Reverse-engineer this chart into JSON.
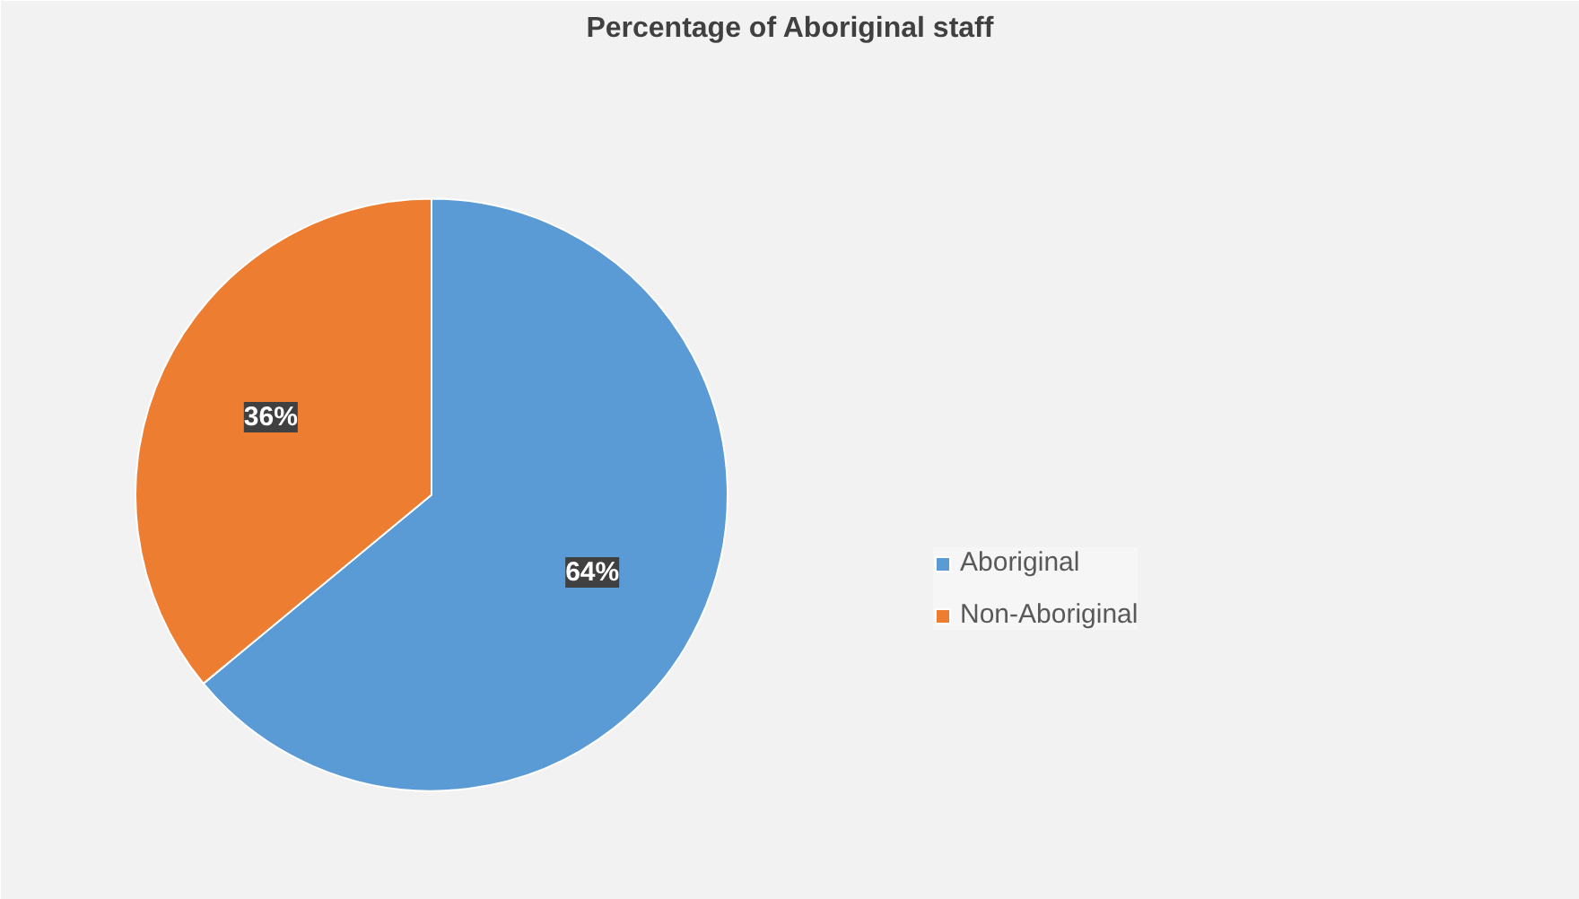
{
  "chart_data": {
    "type": "pie",
    "title": "Percentage of Aboriginal staff",
    "categories": [
      "Aboriginal",
      "Non-Aboriginal"
    ],
    "values": [
      64,
      36
    ],
    "colors": [
      "#5b9bd5",
      "#ed7d31"
    ],
    "value_labels": [
      "64%",
      "36%"
    ],
    "legend": "right"
  }
}
